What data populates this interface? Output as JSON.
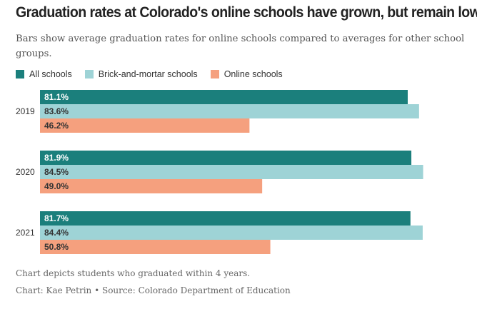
{
  "title": "Graduation rates at Colorado's online schools have grown, but remain low",
  "subtitle": "Bars show average graduation rates for online schools compared to averages for other school groups.",
  "note": "Chart depicts students who graduated within 4 years.",
  "credit": "Chart: Kae Petrin • Source: Colorado Department of Education",
  "colors": {
    "all_schools": "#1b7f7c",
    "brick_and_mortar": "#9ed3d6",
    "online": "#f5a07e"
  },
  "chart_data": {
    "type": "bar",
    "orientation": "horizontal",
    "categories": [
      "2019",
      "2020",
      "2021"
    ],
    "series": [
      {
        "name": "All schools",
        "key": "all_schools",
        "values": [
          81.1,
          81.9,
          81.7
        ],
        "labels": [
          "81.1%",
          "81.9%",
          "81.7%"
        ]
      },
      {
        "name": "Brick-and-mortar schools",
        "key": "brick_and_mortar",
        "values": [
          83.6,
          84.5,
          84.4
        ],
        "labels": [
          "83.6%",
          "84.5%",
          "84.4%"
        ]
      },
      {
        "name": "Online schools",
        "key": "online",
        "values": [
          46.2,
          49.0,
          50.8
        ],
        "labels": [
          "46.2%",
          "49.0%",
          "50.8%"
        ]
      }
    ],
    "xlim": [
      0,
      100
    ],
    "title": "Graduation rates at Colorado's online schools have grown, but remain low",
    "xlabel": "",
    "ylabel": "",
    "grid": false,
    "legend": "top-left"
  }
}
